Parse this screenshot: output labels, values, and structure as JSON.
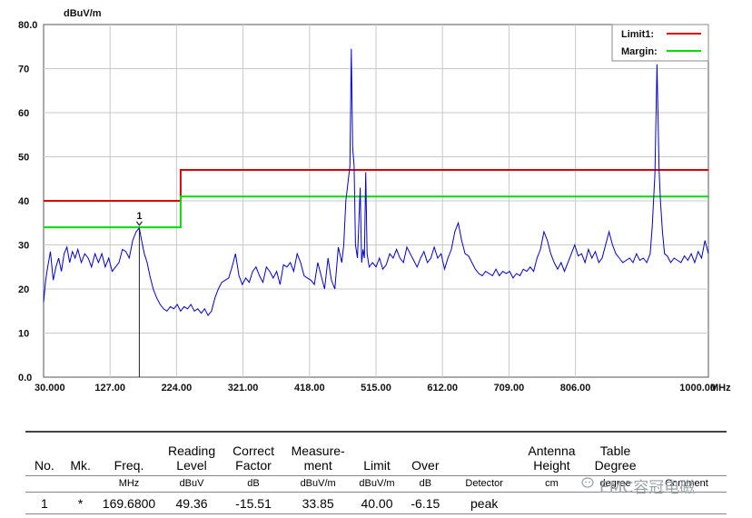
{
  "chart_data": {
    "type": "line",
    "ylabel": "dBuV/m",
    "xunit": "MHz",
    "xlim": [
      30,
      1000
    ],
    "ylim": [
      0,
      80
    ],
    "x_ticks": [
      "30.000",
      "127.00",
      "224.00",
      "321.00",
      "418.00",
      "515.00",
      "612.00",
      "709.00",
      "806.00",
      "1000.00"
    ],
    "y_ticks": [
      "80.0",
      "70",
      "60",
      "50",
      "40",
      "30",
      "20",
      "10",
      "0.0"
    ],
    "grid": true,
    "legend_placement": "top-right",
    "limit_lines": [
      {
        "name": "Limit1:",
        "color": "#dd0000",
        "points": [
          [
            30,
            40
          ],
          [
            230,
            40
          ],
          [
            230,
            47
          ],
          [
            1000,
            47
          ]
        ]
      },
      {
        "name": "Margin:",
        "color": "#00dd00",
        "points": [
          [
            30,
            34
          ],
          [
            230,
            34
          ],
          [
            230,
            41
          ],
          [
            1000,
            41
          ]
        ]
      }
    ],
    "series": [
      {
        "color": "#0000cc",
        "points": [
          [
            30,
            17
          ],
          [
            33,
            22
          ],
          [
            36,
            25
          ],
          [
            40,
            28.5
          ],
          [
            44,
            22
          ],
          [
            48,
            25
          ],
          [
            52,
            27
          ],
          [
            56,
            24
          ],
          [
            60,
            28
          ],
          [
            64,
            29.5
          ],
          [
            68,
            26
          ],
          [
            72,
            28.5
          ],
          [
            76,
            27
          ],
          [
            80,
            29
          ],
          [
            85,
            26
          ],
          [
            90,
            28
          ],
          [
            95,
            27
          ],
          [
            100,
            25
          ],
          [
            105,
            28
          ],
          [
            110,
            26
          ],
          [
            115,
            28
          ],
          [
            120,
            25
          ],
          [
            125,
            27
          ],
          [
            130,
            24
          ],
          [
            135,
            25
          ],
          [
            140,
            26
          ],
          [
            145,
            29
          ],
          [
            150,
            28.5
          ],
          [
            155,
            27
          ],
          [
            160,
            31
          ],
          [
            165,
            33
          ],
          [
            169.68,
            33.85
          ],
          [
            173,
            31
          ],
          [
            177,
            28
          ],
          [
            181,
            26
          ],
          [
            185,
            23
          ],
          [
            190,
            20
          ],
          [
            195,
            18
          ],
          [
            200,
            16.5
          ],
          [
            205,
            15.5
          ],
          [
            210,
            15
          ],
          [
            215,
            16
          ],
          [
            220,
            15.5
          ],
          [
            225,
            16.5
          ],
          [
            230,
            15
          ],
          [
            235,
            16
          ],
          [
            240,
            15.5
          ],
          [
            245,
            16.5
          ],
          [
            250,
            15
          ],
          [
            255,
            15.5
          ],
          [
            260,
            14.5
          ],
          [
            265,
            15.5
          ],
          [
            270,
            14
          ],
          [
            275,
            15
          ],
          [
            280,
            18
          ],
          [
            285,
            20
          ],
          [
            290,
            21.5
          ],
          [
            295,
            22
          ],
          [
            300,
            22.5
          ],
          [
            305,
            25
          ],
          [
            310,
            28
          ],
          [
            315,
            23
          ],
          [
            320,
            21
          ],
          [
            325,
            22.5
          ],
          [
            330,
            21.5
          ],
          [
            335,
            24
          ],
          [
            340,
            25
          ],
          [
            345,
            23
          ],
          [
            350,
            21.5
          ],
          [
            355,
            25
          ],
          [
            360,
            24
          ],
          [
            365,
            22.5
          ],
          [
            370,
            24
          ],
          [
            375,
            21
          ],
          [
            380,
            25.5
          ],
          [
            385,
            25
          ],
          [
            390,
            26
          ],
          [
            395,
            24
          ],
          [
            400,
            28
          ],
          [
            405,
            26
          ],
          [
            410,
            23
          ],
          [
            415,
            22.5
          ],
          [
            420,
            22
          ],
          [
            425,
            21
          ],
          [
            430,
            26
          ],
          [
            435,
            23
          ],
          [
            440,
            20
          ],
          [
            445,
            27
          ],
          [
            450,
            22
          ],
          [
            455,
            20
          ],
          [
            460,
            29.5
          ],
          [
            465,
            26
          ],
          [
            468,
            30
          ],
          [
            471,
            40
          ],
          [
            474,
            44
          ],
          [
            477,
            48
          ],
          [
            479,
            74.5
          ],
          [
            481,
            52
          ],
          [
            483,
            48
          ],
          [
            485,
            30
          ],
          [
            488,
            27
          ],
          [
            492,
            43
          ],
          [
            494,
            26
          ],
          [
            496,
            29
          ],
          [
            498,
            27
          ],
          [
            500,
            46.5
          ],
          [
            502,
            28
          ],
          [
            505,
            25
          ],
          [
            510,
            26
          ],
          [
            515,
            25
          ],
          [
            520,
            27
          ],
          [
            525,
            24.5
          ],
          [
            530,
            25.5
          ],
          [
            535,
            28
          ],
          [
            540,
            27
          ],
          [
            545,
            29
          ],
          [
            550,
            27
          ],
          [
            555,
            26
          ],
          [
            560,
            29.5
          ],
          [
            565,
            28
          ],
          [
            570,
            26.5
          ],
          [
            575,
            25
          ],
          [
            580,
            27
          ],
          [
            585,
            28.5
          ],
          [
            590,
            26
          ],
          [
            595,
            27
          ],
          [
            600,
            29.5
          ],
          [
            605,
            27
          ],
          [
            610,
            28
          ],
          [
            615,
            24.5
          ],
          [
            620,
            27
          ],
          [
            625,
            29
          ],
          [
            630,
            33
          ],
          [
            635,
            35
          ],
          [
            640,
            31
          ],
          [
            645,
            28
          ],
          [
            650,
            27.5
          ],
          [
            655,
            26
          ],
          [
            660,
            24.5
          ],
          [
            665,
            23.5
          ],
          [
            670,
            23
          ],
          [
            675,
            24
          ],
          [
            680,
            23.5
          ],
          [
            685,
            23
          ],
          [
            690,
            24.5
          ],
          [
            695,
            23
          ],
          [
            700,
            24
          ],
          [
            705,
            23.5
          ],
          [
            710,
            24
          ],
          [
            715,
            22.5
          ],
          [
            720,
            23.5
          ],
          [
            725,
            23
          ],
          [
            730,
            24.5
          ],
          [
            735,
            24
          ],
          [
            740,
            25
          ],
          [
            745,
            24
          ],
          [
            750,
            27
          ],
          [
            755,
            29
          ],
          [
            760,
            33
          ],
          [
            765,
            31
          ],
          [
            770,
            28
          ],
          [
            775,
            26
          ],
          [
            780,
            24.5
          ],
          [
            785,
            26
          ],
          [
            790,
            24
          ],
          [
            795,
            26
          ],
          [
            800,
            28
          ],
          [
            805,
            30
          ],
          [
            810,
            27.5
          ],
          [
            815,
            28
          ],
          [
            820,
            26
          ],
          [
            825,
            29
          ],
          [
            830,
            27
          ],
          [
            835,
            28.5
          ],
          [
            840,
            26
          ],
          [
            845,
            27
          ],
          [
            850,
            30
          ],
          [
            855,
            33
          ],
          [
            860,
            30
          ],
          [
            865,
            28
          ],
          [
            870,
            27
          ],
          [
            875,
            26
          ],
          [
            880,
            26.5
          ],
          [
            885,
            27
          ],
          [
            890,
            26
          ],
          [
            895,
            28
          ],
          [
            900,
            26.5
          ],
          [
            905,
            27
          ],
          [
            910,
            26
          ],
          [
            915,
            28
          ],
          [
            918,
            34
          ],
          [
            920,
            40
          ],
          [
            922,
            46
          ],
          [
            925,
            71
          ],
          [
            928,
            47
          ],
          [
            930,
            40
          ],
          [
            933,
            33
          ],
          [
            936,
            28
          ],
          [
            940,
            27.5
          ],
          [
            945,
            26
          ],
          [
            950,
            27
          ],
          [
            955,
            26.5
          ],
          [
            960,
            26
          ],
          [
            965,
            27.5
          ],
          [
            970,
            26.5
          ],
          [
            975,
            28
          ],
          [
            980,
            26
          ],
          [
            985,
            28.5
          ],
          [
            990,
            27
          ],
          [
            995,
            31
          ],
          [
            1000,
            28
          ]
        ]
      }
    ],
    "marker": {
      "label": "1",
      "x": 169.68,
      "y": 33.85
    }
  },
  "legend": {
    "limit_label": "Limit1:",
    "margin_label": "Margin:",
    "limit_color": "#dd0000",
    "margin_color": "#00dd00"
  },
  "table": {
    "headers": [
      {
        "key": "no",
        "lines": [
          "No."
        ]
      },
      {
        "key": "mk",
        "lines": [
          "Mk."
        ]
      },
      {
        "key": "freq",
        "lines": [
          "Freq."
        ]
      },
      {
        "key": "reading",
        "lines": [
          "Reading",
          "Level"
        ]
      },
      {
        "key": "correct",
        "lines": [
          "Correct",
          "Factor"
        ]
      },
      {
        "key": "meas",
        "lines": [
          "Measure-",
          "ment"
        ]
      },
      {
        "key": "limit",
        "lines": [
          "Limit"
        ]
      },
      {
        "key": "over",
        "lines": [
          "Over"
        ]
      },
      {
        "key": "detector",
        "lines": [
          ""
        ]
      },
      {
        "key": "antenna",
        "lines": [
          "Antenna",
          "Height"
        ]
      },
      {
        "key": "table_deg",
        "lines": [
          "Table",
          "Degree"
        ]
      },
      {
        "key": "comment",
        "lines": [
          ""
        ]
      }
    ],
    "units": [
      "",
      "",
      "MHz",
      "dBuV",
      "dB",
      "dBuV/m",
      "dBuV/m",
      "dB",
      "Detector",
      "cm",
      "degree",
      "Comment"
    ],
    "rows": [
      [
        "1",
        "*",
        "169.6800",
        "49.36",
        "-15.51",
        "33.85",
        "40.00",
        "-6.15",
        "peak",
        "",
        "",
        ""
      ]
    ]
  },
  "watermark": {
    "text": "EMC容冠电磁"
  }
}
